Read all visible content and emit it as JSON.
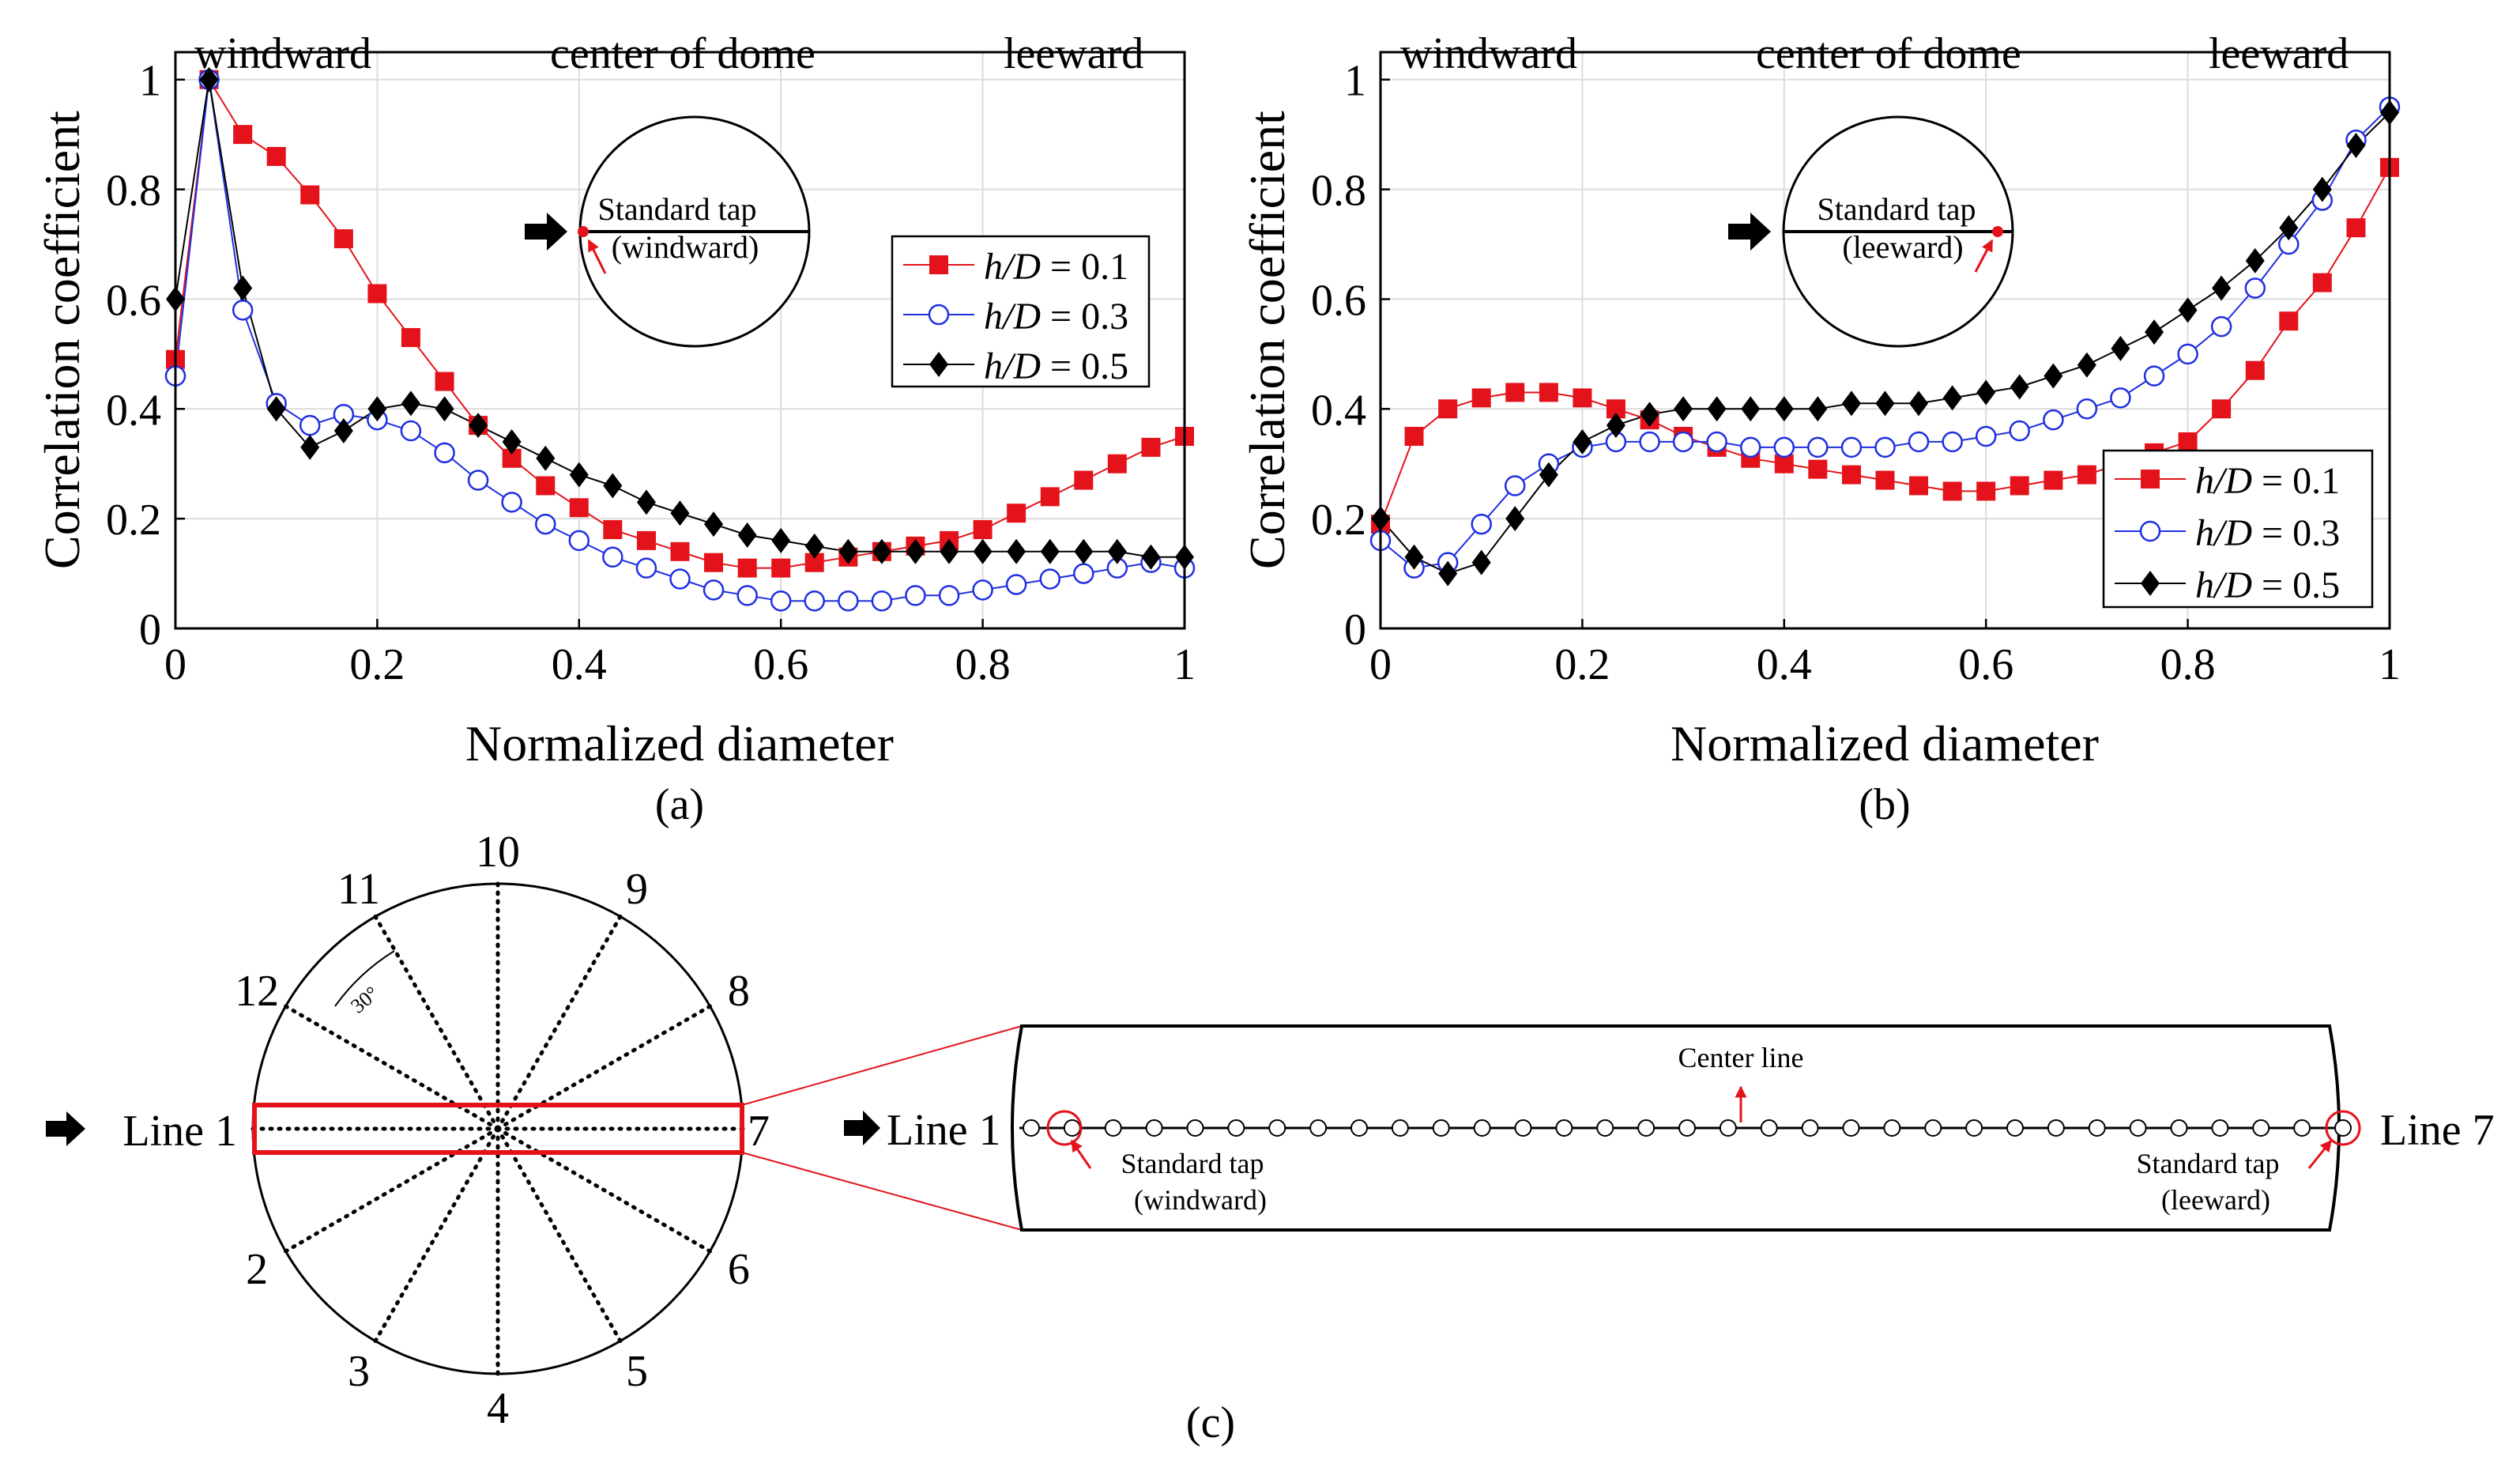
{
  "chart_data": [
    {
      "type": "line",
      "panel_label": "(a)",
      "xlabel": "Normalized diameter",
      "ylabel": "Correlation coefficient",
      "xlim": [
        0,
        1
      ],
      "ylim": [
        0,
        1.05
      ],
      "xticks": [
        0,
        0.2,
        0.4,
        0.6,
        0.8,
        1
      ],
      "yticks": [
        0,
        0.2,
        0.4,
        0.6,
        0.8,
        1
      ],
      "xtick_labels": [
        "0",
        "0.2",
        "0.4",
        "0.6",
        "0.8",
        "1"
      ],
      "ytick_labels": [
        "0",
        "0.2",
        "0.4",
        "0.6",
        "0.8",
        "1"
      ],
      "grid": true,
      "legend_position": "right-middle",
      "top_labels": [
        "windward",
        "center of dome",
        "leeward"
      ],
      "inset": {
        "tap_label": "Standard tap",
        "side_label": "(windward)",
        "tap_side": "left"
      },
      "x": [
        0,
        0.0333,
        0.0667,
        0.1,
        0.1333,
        0.1667,
        0.2,
        0.2333,
        0.2667,
        0.3,
        0.3333,
        0.3667,
        0.4,
        0.4333,
        0.4667,
        0.5,
        0.5333,
        0.5667,
        0.6,
        0.6333,
        0.6667,
        0.7,
        0.7333,
        0.7667,
        0.8,
        0.8333,
        0.8667,
        0.9,
        0.9333,
        0.9667,
        1
      ],
      "series": [
        {
          "name": "h/D = 0.1",
          "legend_italic": "h/D",
          "legend_value": " = 0.1",
          "color": "#e4131b",
          "marker": "square",
          "values": [
            0.49,
            1.0,
            0.9,
            0.86,
            0.79,
            0.71,
            0.61,
            0.53,
            0.45,
            0.37,
            0.31,
            0.26,
            0.22,
            0.18,
            0.16,
            0.14,
            0.12,
            0.11,
            0.11,
            0.12,
            0.13,
            0.14,
            0.15,
            0.16,
            0.18,
            0.21,
            0.24,
            0.27,
            0.3,
            0.33,
            0.35
          ]
        },
        {
          "name": "h/D = 0.3",
          "legend_italic": "h/D",
          "legend_value": " = 0.3",
          "color": "#1f2fe0",
          "marker": "circle",
          "values": [
            0.46,
            1.0,
            0.58,
            0.41,
            0.37,
            0.39,
            0.38,
            0.36,
            0.32,
            0.27,
            0.23,
            0.19,
            0.16,
            0.13,
            0.11,
            0.09,
            0.07,
            0.06,
            0.05,
            0.05,
            0.05,
            0.05,
            0.06,
            0.06,
            0.07,
            0.08,
            0.09,
            0.1,
            0.11,
            0.12,
            0.11
          ]
        },
        {
          "name": "h/D = 0.5",
          "legend_italic": "h/D",
          "legend_value": " = 0.5",
          "color": "#000000",
          "marker": "diamond",
          "values": [
            0.6,
            1.0,
            0.62,
            0.4,
            0.33,
            0.36,
            0.4,
            0.41,
            0.4,
            0.37,
            0.34,
            0.31,
            0.28,
            0.26,
            0.23,
            0.21,
            0.19,
            0.17,
            0.16,
            0.15,
            0.14,
            0.14,
            0.14,
            0.14,
            0.14,
            0.14,
            0.14,
            0.14,
            0.14,
            0.13,
            0.13
          ]
        }
      ]
    },
    {
      "type": "line",
      "panel_label": "(b)",
      "xlabel": "Normalized diameter",
      "ylabel": "Correlation coefficient",
      "xlim": [
        0,
        1
      ],
      "ylim": [
        0,
        1.05
      ],
      "xticks": [
        0,
        0.2,
        0.4,
        0.6,
        0.8,
        1
      ],
      "yticks": [
        0,
        0.2,
        0.4,
        0.6,
        0.8,
        1
      ],
      "xtick_labels": [
        "0",
        "0.2",
        "0.4",
        "0.6",
        "0.8",
        "1"
      ],
      "ytick_labels": [
        "0",
        "0.2",
        "0.4",
        "0.6",
        "0.8",
        "1"
      ],
      "grid": true,
      "legend_position": "bottom-right",
      "top_labels": [
        "windward",
        "center of dome",
        "leeward"
      ],
      "inset": {
        "tap_label": "Standard tap",
        "side_label": "(leeward)",
        "tap_side": "right"
      },
      "x": [
        0,
        0.0333,
        0.0667,
        0.1,
        0.1333,
        0.1667,
        0.2,
        0.2333,
        0.2667,
        0.3,
        0.3333,
        0.3667,
        0.4,
        0.4333,
        0.4667,
        0.5,
        0.5333,
        0.5667,
        0.6,
        0.6333,
        0.6667,
        0.7,
        0.7333,
        0.7667,
        0.8,
        0.8333,
        0.8667,
        0.9,
        0.9333,
        0.9667,
        1
      ],
      "series": [
        {
          "name": "h/D = 0.1",
          "legend_italic": "h/D",
          "legend_value": " = 0.1",
          "color": "#e4131b",
          "marker": "square",
          "values": [
            0.19,
            0.35,
            0.4,
            0.42,
            0.43,
            0.43,
            0.42,
            0.4,
            0.38,
            0.35,
            0.33,
            0.31,
            0.3,
            0.29,
            0.28,
            0.27,
            0.26,
            0.25,
            0.25,
            0.26,
            0.27,
            0.28,
            0.3,
            0.32,
            0.34,
            0.4,
            0.47,
            0.56,
            0.63,
            0.73,
            0.84
          ]
        },
        {
          "name": "h/D = 0.3",
          "legend_italic": "h/D",
          "legend_value": " = 0.3",
          "color": "#1f2fe0",
          "marker": "circle",
          "values": [
            0.16,
            0.11,
            0.12,
            0.19,
            0.26,
            0.3,
            0.33,
            0.34,
            0.34,
            0.34,
            0.34,
            0.33,
            0.33,
            0.33,
            0.33,
            0.33,
            0.34,
            0.34,
            0.35,
            0.36,
            0.38,
            0.4,
            0.42,
            0.46,
            0.5,
            0.55,
            0.62,
            0.7,
            0.78,
            0.89,
            0.95
          ]
        },
        {
          "name": "h/D = 0.5",
          "legend_italic": "h/D",
          "legend_value": " = 0.5",
          "color": "#000000",
          "marker": "diamond",
          "values": [
            0.2,
            0.13,
            0.1,
            0.12,
            0.2,
            0.28,
            0.34,
            0.37,
            0.39,
            0.4,
            0.4,
            0.4,
            0.4,
            0.4,
            0.41,
            0.41,
            0.41,
            0.42,
            0.43,
            0.44,
            0.46,
            0.48,
            0.51,
            0.54,
            0.58,
            0.62,
            0.67,
            0.73,
            0.8,
            0.88,
            0.94
          ]
        }
      ]
    }
  ],
  "diagram": {
    "panel_label": "(c)",
    "line_numbers": [
      "10",
      "9",
      "8",
      "7",
      "6",
      "5",
      "4",
      "3",
      "2",
      "Line 1",
      "12",
      "11"
    ],
    "angle_label": "30°",
    "zoom": {
      "left_label": "Line 1",
      "right_label": "Line 7",
      "center_label": "Center line",
      "left_tap_label": "Standard tap",
      "left_tap_side": "(windward)",
      "right_tap_label": "Standard tap",
      "right_tap_side": "(leeward)",
      "tap_count": 33
    }
  }
}
